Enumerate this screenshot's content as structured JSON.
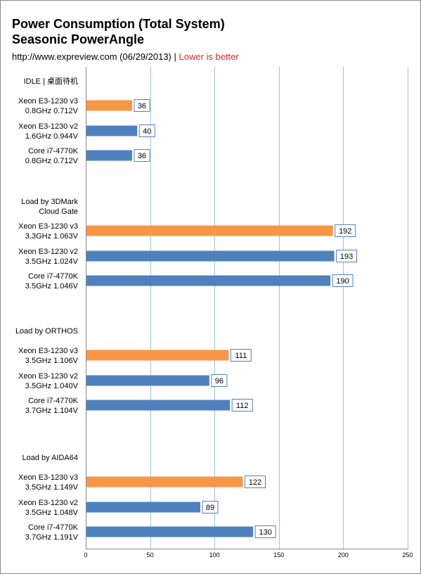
{
  "header": {
    "title_line1": "Power Consumption (Total System)",
    "title_line2": "Seasonic PowerAngle",
    "source": "http://www.expreview.com (06/29/2013)",
    "separator": " | ",
    "note": "Lower is better"
  },
  "colors": {
    "v3": "#f79646",
    "other": "#4f81bd",
    "grid": "#9dc3d9",
    "label_border": "#4f81bd"
  },
  "chart_data": {
    "type": "bar",
    "orientation": "horizontal",
    "xlim": [
      0,
      250
    ],
    "xticks": [
      0,
      50,
      100,
      150,
      200,
      250
    ],
    "grid": true,
    "groups": [
      {
        "name": "IDLE | 桌面待机",
        "bars": [
          {
            "label": "Xeon E3-1230 v3\n0.8GHz 0.712V",
            "value": 36,
            "color": "v3"
          },
          {
            "label": "Xeon E3-1230 v2\n1.6GHz 0.944V",
            "value": 40,
            "color": "other"
          },
          {
            "label": "Core i7-4770K\n0.8GHz 0.712V",
            "value": 36,
            "color": "other"
          }
        ]
      },
      {
        "name": "Load by 3DMark\nCloud Gate",
        "bars": [
          {
            "label": "Xeon E3-1230 v3\n3.3GHz 1.063V",
            "value": 192,
            "color": "v3"
          },
          {
            "label": "Xeon E3-1230 v2\n3.5GHz 1.024V",
            "value": 193,
            "color": "other"
          },
          {
            "label": "Core i7-4770K\n3.5GHz 1.046V",
            "value": 190,
            "color": "other"
          }
        ]
      },
      {
        "name": "Load by ORTHOS",
        "bars": [
          {
            "label": "Xeon E3-1230 v3\n3.5GHz 1.106V",
            "value": 111,
            "color": "v3"
          },
          {
            "label": "Xeon E3-1230 v2\n3.5GHz 1.040V",
            "value": 96,
            "color": "other"
          },
          {
            "label": "Core i7-4770K\n3.7GHz 1.104V",
            "value": 112,
            "color": "other"
          }
        ]
      },
      {
        "name": "Load by AIDA64",
        "bars": [
          {
            "label": "Xeon E3-1230 v3\n3.5GHz 1.149V",
            "value": 122,
            "color": "v3"
          },
          {
            "label": "Xeon E3-1230 v2\n3.5GHz 1.048V",
            "value": 89,
            "color": "other"
          },
          {
            "label": "Core i7-4770K\n3.7GHz 1.191V",
            "value": 130,
            "color": "other"
          }
        ]
      }
    ]
  }
}
